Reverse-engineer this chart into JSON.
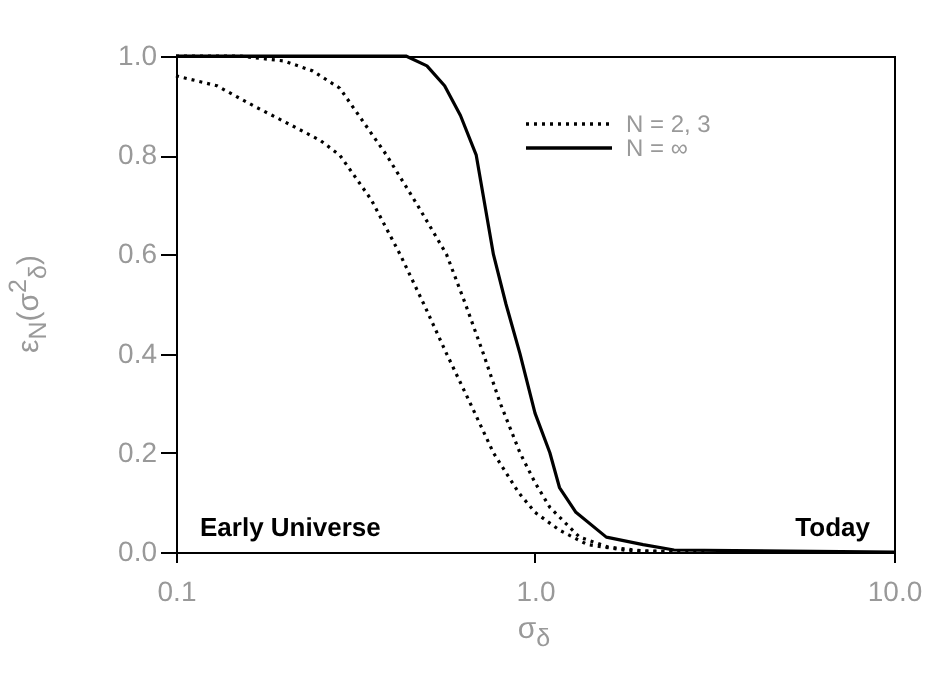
{
  "chart_data": {
    "type": "line",
    "xlabel": "σ$_{δ}$",
    "ylabel": "ε$_{N}$(σ$^{2}$$_{δ}$)",
    "log": "x",
    "grid": false,
    "legend": "top right",
    "marker": "none",
    "xlim": [
      0.1,
      10
    ],
    "xticks": [
      0.1,
      {
        "value": 1,
        "label": "1.0"
      },
      {
        "value": 10,
        "label": "10.0"
      }
    ],
    "ylim": [
      0,
      1.0
    ],
    "yticks": [
      {
        "value": 0,
        "label": "0.0"
      },
      0.2,
      0.4,
      0.6,
      0.8,
      {
        "value": 1,
        "label": "1.0"
      }
    ],
    "annotations": [
      "Early Universe",
      "Today"
    ],
    "series": [
      {
        "name": "N = 2, 3",
        "color": "#000000",
        "line_style": "dotted",
        "x": [
          0.1,
          0.13,
          0.164,
          0.21,
          0.252,
          0.286,
          0.35,
          0.421,
          0.49,
          0.567,
          0.66,
          0.766,
          0.9,
          1.0,
          1.17,
          1.4,
          1.8,
          2.5
        ],
        "values": [
          0.96,
          0.94,
          0.9,
          0.86,
          0.83,
          0.8,
          0.71,
          0.6,
          0.5,
          0.4,
          0.3,
          0.2,
          0.12,
          0.08,
          0.044,
          0.015,
          0.003,
          0
        ]
      },
      {
        "color": "#000000",
        "line_style": "dotted",
        "x": [
          0.1,
          0.15,
          0.2,
          0.24,
          0.286,
          0.386,
          0.47,
          0.567,
          0.64,
          0.718,
          0.8,
          0.908,
          1.0,
          1.1,
          1.33,
          1.6,
          2.0,
          3.0
        ],
        "values": [
          1.0,
          1.0,
          0.99,
          0.97,
          0.935,
          0.8,
          0.7,
          0.6,
          0.5,
          0.4,
          0.3,
          0.2,
          0.14,
          0.09,
          0.03,
          0.01,
          0.002,
          0
        ]
      },
      {
        "name": "N = ∞",
        "color": "#000000",
        "line_style": "solid",
        "x": [
          0.1,
          0.3,
          0.437,
          0.5,
          0.56,
          0.62,
          0.686,
          0.766,
          0.83,
          0.908,
          1.0,
          1.1,
          1.17,
          1.3,
          1.58,
          2.0,
          2.44,
          10
        ],
        "values": [
          1.0,
          1.0,
          1.0,
          0.98,
          0.94,
          0.88,
          0.8,
          0.6,
          0.5,
          0.4,
          0.28,
          0.2,
          0.13,
          0.08,
          0.03,
          0.015,
          0.004,
          0
        ]
      }
    ]
  }
}
